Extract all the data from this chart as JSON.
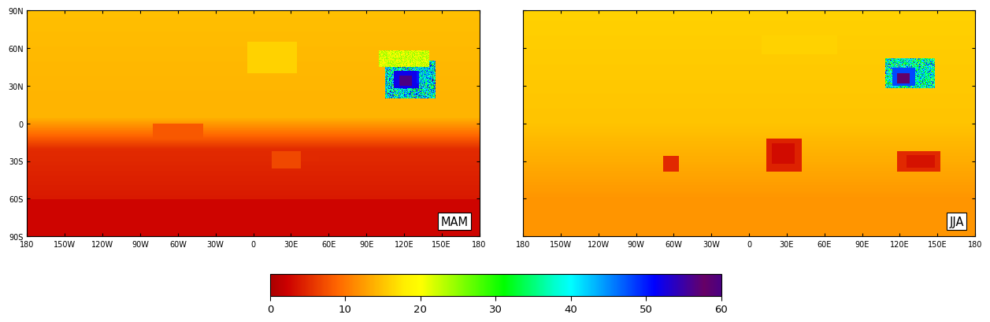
{
  "panels": [
    "MAM",
    "JJA"
  ],
  "lat_labels": [
    "90N",
    "60N",
    "30N",
    "0",
    "30S",
    "60S",
    "90S"
  ],
  "lat_values": [
    90,
    60,
    30,
    0,
    -30,
    -60,
    -90
  ],
  "lon_labels": [
    "180",
    "150W",
    "120W",
    "90W",
    "60W",
    "30W",
    "0",
    "30E",
    "60E",
    "90E",
    "120E",
    "150E",
    "180"
  ],
  "lon_values": [
    -180,
    -150,
    -120,
    -90,
    -60,
    -30,
    0,
    30,
    60,
    90,
    120,
    150,
    180
  ],
  "colorbar_ticks": [
    0,
    10,
    20,
    30,
    40,
    50,
    60
  ],
  "colorbar_ticklabels": [
    "0",
    "10",
    "20",
    "30",
    "40",
    "50",
    "60"
  ],
  "cmap_colors": [
    "#AA0000",
    "#CC0000",
    "#DD2200",
    "#EE4400",
    "#FF6600",
    "#FF8800",
    "#FFAA00",
    "#FFCC00",
    "#FFEE00",
    "#FFFF00",
    "#CCFF00",
    "#99FF00",
    "#66FF00",
    "#33FF00",
    "#00FF00",
    "#00FF44",
    "#00FF88",
    "#00FFCC",
    "#00FFFF",
    "#00CCFF",
    "#0099FF",
    "#0066FF",
    "#0033FF",
    "#0000FF",
    "#2200CC",
    "#440099",
    "#660066",
    "#4B0082"
  ],
  "vmin": 0,
  "vmax": 60,
  "base_value_MAM": 14.0,
  "base_value_JJA": 15.0,
  "sh_value_MAM": 4.0,
  "sh_value_JJA": 14.5,
  "tick_fontsize": 7.0,
  "label_fontsize": 10.5
}
